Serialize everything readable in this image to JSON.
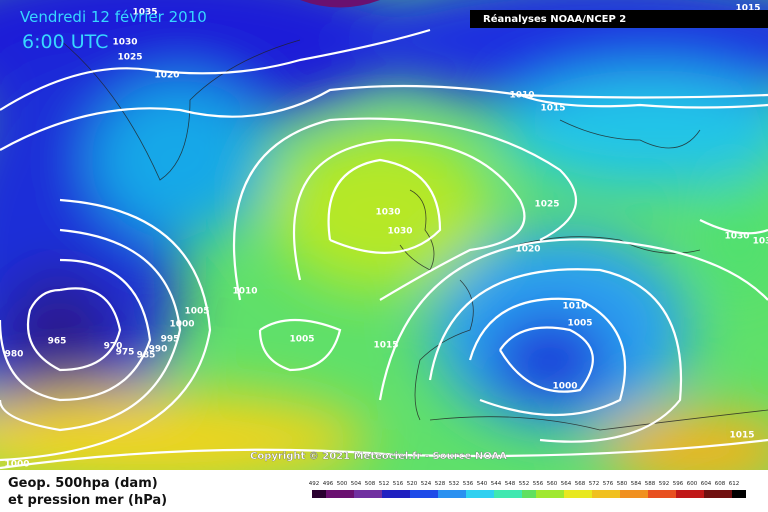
{
  "header": {
    "date": "Vendredi 12 février 2010",
    "time": "6:00 UTC",
    "source": "Réanalyses NOAA/NCEP 2"
  },
  "isobar_labels": [
    "1035",
    "1030",
    "1025",
    "1020",
    "1010",
    "1015",
    "1015",
    "1030",
    "1030",
    "1025",
    "1020",
    "1030",
    "103",
    "1010",
    "1005",
    "1000",
    "995",
    "990",
    "985",
    "975",
    "970",
    "965",
    "980",
    "1005",
    "1015",
    "1010",
    "1005",
    "1000",
    "1000",
    "1015"
  ],
  "footer": {
    "copyright": "Copyright © 2021 Meteociel.fr - Source NOAA",
    "line1": "Geop. 500hpa (dam)",
    "line2": "et pression mer (hPa)",
    "scale": [
      492,
      496,
      500,
      504,
      508,
      512,
      516,
      520,
      524,
      528,
      532,
      536,
      540,
      544,
      548,
      552,
      556,
      560,
      564,
      568,
      572,
      576,
      580,
      584,
      588,
      592,
      596,
      600,
      604,
      608,
      612
    ]
  }
}
